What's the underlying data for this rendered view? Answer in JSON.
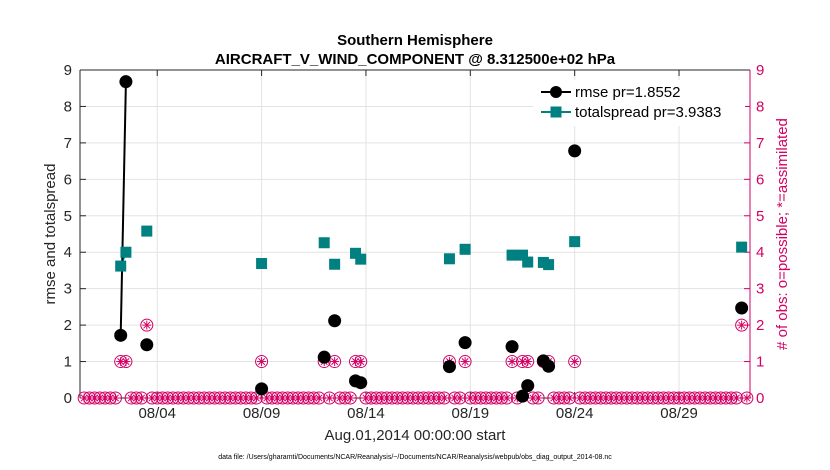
{
  "chart_data": {
    "type": "scatter",
    "title": "Southern Hemisphere",
    "subtitle": "AIRCRAFT_V_WIND_COMPONENT @ 8.312500e+02 hPa",
    "xlabel": "Aug.01,2014 00:00:00 start",
    "ylabel": "rmse and totalspread",
    "ylabel_right": "# of obs: o=possible; *=assimilated",
    "xlim": [
      -0.7,
      31.4
    ],
    "ylim": [
      0,
      9
    ],
    "ylim_right": [
      0,
      9
    ],
    "x_ticks": [
      3,
      8,
      13,
      18,
      23,
      28
    ],
    "x_tick_labels": [
      "08/04",
      "08/09",
      "08/14",
      "08/19",
      "08/24",
      "08/29"
    ],
    "y_ticks": [
      "0",
      "1",
      "2",
      "3",
      "4",
      "5",
      "6",
      "7",
      "8",
      "9"
    ],
    "y_ticks_right": [
      "0",
      "1",
      "2",
      "3",
      "4",
      "5",
      "6",
      "7",
      "8",
      "9"
    ],
    "footnote": "data file: /Users/gharamti/Documents/NCAR/Reanalysis/~/Documents/NCAR/Reanalysis/webpub/obs_diag_output_2014-08.nc",
    "colors": {
      "rmse": "#000000",
      "totalspread": "#008080",
      "obs": "#d40064",
      "axis": "#262626"
    },
    "series": [
      {
        "name": "rmse",
        "legend": "rmse pr=1.8552",
        "points": [
          [
            1.25,
            1.72
          ],
          [
            1.5,
            8.68
          ],
          [
            2.5,
            1.46
          ],
          [
            8.0,
            0.25
          ],
          [
            11.0,
            1.12
          ],
          [
            11.5,
            2.12
          ],
          [
            12.5,
            0.47
          ],
          [
            12.75,
            0.42
          ],
          [
            17.0,
            0.86
          ],
          [
            17.75,
            1.52
          ],
          [
            20.0,
            1.41
          ],
          [
            20.5,
            0.05
          ],
          [
            20.75,
            0.34
          ],
          [
            21.5,
            1.02
          ],
          [
            21.75,
            0.87
          ],
          [
            23.0,
            6.78
          ],
          [
            31.0,
            2.47
          ]
        ]
      },
      {
        "name": "totalspread",
        "legend": "totalspread pr=3.9383",
        "points": [
          [
            1.25,
            3.62
          ],
          [
            1.5,
            4.0
          ],
          [
            2.5,
            4.58
          ],
          [
            8.0,
            3.69
          ],
          [
            11.0,
            4.26
          ],
          [
            11.5,
            3.67
          ],
          [
            12.5,
            3.97
          ],
          [
            12.75,
            3.81
          ],
          [
            17.0,
            3.82
          ],
          [
            17.75,
            4.08
          ],
          [
            20.0,
            3.92
          ],
          [
            20.5,
            3.92
          ],
          [
            20.75,
            3.73
          ],
          [
            21.5,
            3.72
          ],
          [
            21.75,
            3.66
          ],
          [
            23.0,
            4.29
          ],
          [
            31.0,
            4.14
          ]
        ]
      }
    ],
    "obs_possible_times": [
      -0.5,
      -0.25,
      0.0,
      0.25,
      0.5,
      0.75,
      1.0,
      1.25,
      1.5,
      1.75,
      2.0,
      2.25,
      2.5,
      2.75,
      3.0,
      3.25,
      3.5,
      3.75,
      4.0,
      4.25,
      4.5,
      4.75,
      5.0,
      5.25,
      5.5,
      5.75,
      6.0,
      6.25,
      6.5,
      6.75,
      7.0,
      7.25,
      7.5,
      7.75,
      8.0,
      8.25,
      8.5,
      8.75,
      9.0,
      9.25,
      9.5,
      9.75,
      10.0,
      10.25,
      10.5,
      10.75,
      11.0,
      11.25,
      11.5,
      11.75,
      12.0,
      12.25,
      12.5,
      12.75,
      13.0,
      13.25,
      13.5,
      13.75,
      14.0,
      14.25,
      14.5,
      14.75,
      15.0,
      15.25,
      15.5,
      15.75,
      16.0,
      16.25,
      16.5,
      16.75,
      17.0,
      17.25,
      17.5,
      17.75,
      18.0,
      18.25,
      18.5,
      18.75,
      19.0,
      19.25,
      19.5,
      19.75,
      20.0,
      20.25,
      20.5,
      20.75,
      21.0,
      21.25,
      21.5,
      21.75,
      22.0,
      22.25,
      22.5,
      22.75,
      23.0,
      23.25,
      23.5,
      23.75,
      24.0,
      24.25,
      24.5,
      24.75,
      25.0,
      25.25,
      25.5,
      25.75,
      26.0,
      26.25,
      26.5,
      26.75,
      27.0,
      27.25,
      27.5,
      27.75,
      28.0,
      28.25,
      28.5,
      28.75,
      29.0,
      29.25,
      29.5,
      29.75,
      30.0,
      30.25,
      30.5,
      30.75,
      31.0,
      31.25
    ],
    "obs_nonzero": [
      [
        1.25,
        1
      ],
      [
        1.5,
        1
      ],
      [
        2.5,
        2
      ],
      [
        8.0,
        1
      ],
      [
        11.0,
        1
      ],
      [
        11.5,
        1
      ],
      [
        12.5,
        1
      ],
      [
        12.75,
        1
      ],
      [
        17.0,
        1
      ],
      [
        17.75,
        1
      ],
      [
        20.0,
        1
      ],
      [
        20.5,
        1
      ],
      [
        20.75,
        1
      ],
      [
        21.5,
        1
      ],
      [
        21.75,
        1
      ],
      [
        23.0,
        1
      ],
      [
        31.0,
        2
      ]
    ]
  }
}
